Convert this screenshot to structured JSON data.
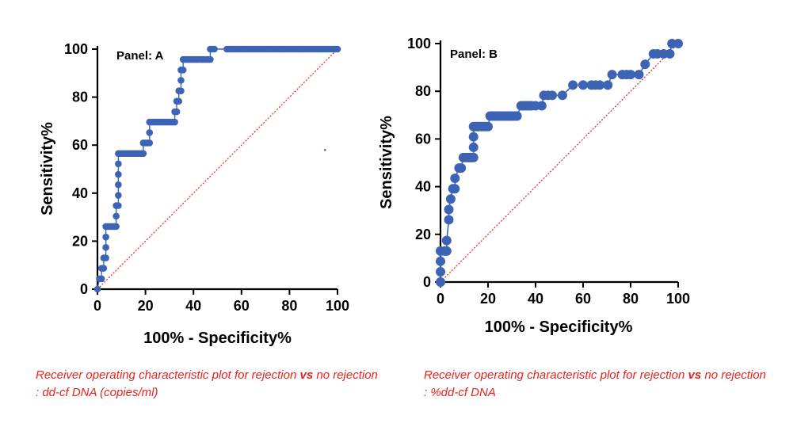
{
  "chart_data": [
    {
      "type": "line",
      "panel_label": "Panel: A",
      "xlabel": "100% - Specificity%",
      "ylabel": "Sensitivity%",
      "xlim": [
        0,
        100
      ],
      "ylim": [
        0,
        100
      ],
      "xticks": [
        "0",
        "20",
        "40",
        "60",
        "80",
        "100"
      ],
      "yticks": [
        "0",
        "20",
        "40",
        "60",
        "80",
        "100"
      ],
      "grid": false,
      "series_color": "#3d63b5",
      "reference_color": "#e8231d",
      "reference_line": [
        [
          0,
          0
        ],
        [
          100,
          100
        ]
      ],
      "stray_point": [
        94.8,
        58
      ],
      "points": [
        [
          0,
          0
        ],
        [
          0.8,
          4.3
        ],
        [
          1.7,
          4.3
        ],
        [
          1.7,
          8.7
        ],
        [
          2.6,
          8.7
        ],
        [
          2.6,
          13
        ],
        [
          3.5,
          13
        ],
        [
          3.5,
          17.4
        ],
        [
          3.5,
          21.7
        ],
        [
          3.5,
          26.1
        ],
        [
          4.3,
          26.1
        ],
        [
          5.2,
          26.1
        ],
        [
          6.1,
          26.1
        ],
        [
          7,
          26.1
        ],
        [
          7.8,
          26.1
        ],
        [
          7.8,
          30.4
        ],
        [
          7.8,
          34.8
        ],
        [
          8.7,
          34.8
        ],
        [
          8.7,
          39.1
        ],
        [
          8.7,
          43.5
        ],
        [
          8.7,
          47.8
        ],
        [
          8.7,
          52.2
        ],
        [
          8.7,
          56.5
        ],
        [
          9.6,
          56.5
        ],
        [
          10.4,
          56.5
        ],
        [
          11.3,
          56.5
        ],
        [
          12.2,
          56.5
        ],
        [
          13,
          56.5
        ],
        [
          13.9,
          56.5
        ],
        [
          14.8,
          56.5
        ],
        [
          15.7,
          56.5
        ],
        [
          16.5,
          56.5
        ],
        [
          17.4,
          56.5
        ],
        [
          18.3,
          56.5
        ],
        [
          19.1,
          56.5
        ],
        [
          19.1,
          60.9
        ],
        [
          20,
          60.9
        ],
        [
          20.9,
          60.9
        ],
        [
          21.7,
          60.9
        ],
        [
          21.7,
          65.2
        ],
        [
          21.7,
          69.6
        ],
        [
          22.6,
          69.6
        ],
        [
          23.5,
          69.6
        ],
        [
          24.3,
          69.6
        ],
        [
          25.2,
          69.6
        ],
        [
          26.1,
          69.6
        ],
        [
          27,
          69.6
        ],
        [
          27.8,
          69.6
        ],
        [
          28.7,
          69.6
        ],
        [
          29.6,
          69.6
        ],
        [
          30.4,
          69.6
        ],
        [
          31.3,
          69.6
        ],
        [
          32.2,
          69.6
        ],
        [
          32.2,
          73.9
        ],
        [
          33,
          73.9
        ],
        [
          33,
          78.3
        ],
        [
          33.9,
          78.3
        ],
        [
          33.9,
          82.6
        ],
        [
          34.8,
          82.6
        ],
        [
          34.8,
          87
        ],
        [
          34.8,
          91.3
        ],
        [
          35.7,
          91.3
        ],
        [
          35.7,
          95.7
        ],
        [
          36.5,
          95.7
        ],
        [
          37.4,
          95.7
        ],
        [
          38.3,
          95.7
        ],
        [
          39.1,
          95.7
        ],
        [
          40,
          95.7
        ],
        [
          40.9,
          95.7
        ],
        [
          41.7,
          95.7
        ],
        [
          42.6,
          95.7
        ],
        [
          43.5,
          95.7
        ],
        [
          44.3,
          95.7
        ],
        [
          45.2,
          95.7
        ],
        [
          46.1,
          95.7
        ],
        [
          47,
          95.7
        ],
        [
          47,
          100
        ],
        [
          47.8,
          100
        ],
        [
          48.7,
          100
        ],
        [
          53.9,
          100
        ],
        [
          54.8,
          100
        ],
        [
          55.7,
          100
        ],
        [
          56.5,
          100
        ],
        [
          57.4,
          100
        ],
        [
          58.3,
          100
        ],
        [
          59.1,
          100
        ],
        [
          60,
          100
        ],
        [
          60.9,
          100
        ],
        [
          61.7,
          100
        ],
        [
          62.6,
          100
        ],
        [
          63.5,
          100
        ],
        [
          64.3,
          100
        ],
        [
          65.2,
          100
        ],
        [
          66.1,
          100
        ],
        [
          67,
          100
        ],
        [
          67.8,
          100
        ],
        [
          68.7,
          100
        ],
        [
          69.6,
          100
        ],
        [
          70.4,
          100
        ],
        [
          71.3,
          100
        ],
        [
          72.2,
          100
        ],
        [
          73,
          100
        ],
        [
          73.9,
          100
        ],
        [
          74.8,
          100
        ],
        [
          75.7,
          100
        ],
        [
          76.5,
          100
        ],
        [
          77.4,
          100
        ],
        [
          78.3,
          100
        ],
        [
          79.1,
          100
        ],
        [
          80,
          100
        ],
        [
          80.9,
          100
        ],
        [
          81.7,
          100
        ],
        [
          82.6,
          100
        ],
        [
          83.5,
          100
        ],
        [
          84.3,
          100
        ],
        [
          85.2,
          100
        ],
        [
          86.1,
          100
        ],
        [
          87,
          100
        ],
        [
          87.8,
          100
        ],
        [
          88.7,
          100
        ],
        [
          89.6,
          100
        ],
        [
          90.4,
          100
        ],
        [
          91.3,
          100
        ],
        [
          92.2,
          100
        ],
        [
          93,
          100
        ],
        [
          93.9,
          100
        ],
        [
          94.8,
          100
        ],
        [
          95.7,
          100
        ],
        [
          96.5,
          100
        ],
        [
          97.4,
          100
        ],
        [
          98.3,
          100
        ],
        [
          99.1,
          100
        ],
        [
          100,
          100
        ]
      ]
    },
    {
      "type": "line",
      "panel_label": "Panel: B",
      "xlabel": "100% - Specificity%",
      "ylabel": "Sensitivity%",
      "xlim": [
        0,
        100
      ],
      "ylim": [
        0,
        100
      ],
      "xticks": [
        "0",
        "20",
        "40",
        "60",
        "80",
        "100"
      ],
      "yticks": [
        "0",
        "20",
        "40",
        "60",
        "80",
        "100"
      ],
      "grid": false,
      "series_color": "#3d63b5",
      "reference_color": "#e8231d",
      "reference_line": [
        [
          0,
          0
        ],
        [
          100,
          100
        ]
      ],
      "points": [
        [
          0,
          0
        ],
        [
          0,
          4.3
        ],
        [
          0,
          8.7
        ],
        [
          0,
          13
        ],
        [
          1.7,
          13
        ],
        [
          2.6,
          13
        ],
        [
          2.6,
          17.4
        ],
        [
          3.5,
          26.1
        ],
        [
          3.5,
          30.4
        ],
        [
          4.3,
          34.8
        ],
        [
          5.2,
          39.1
        ],
        [
          6.1,
          39.1
        ],
        [
          6.1,
          43.5
        ],
        [
          7.8,
          47.8
        ],
        [
          8.7,
          47.8
        ],
        [
          9.6,
          52.2
        ],
        [
          10.4,
          52.2
        ],
        [
          11.3,
          52.2
        ],
        [
          12.2,
          52.2
        ],
        [
          13,
          52.2
        ],
        [
          13.9,
          52.2
        ],
        [
          13.9,
          56.5
        ],
        [
          13.9,
          60.9
        ],
        [
          13.9,
          65.2
        ],
        [
          14.8,
          65.2
        ],
        [
          15.7,
          65.2
        ],
        [
          16.5,
          65.2
        ],
        [
          17.4,
          65.2
        ],
        [
          18.3,
          65.2
        ],
        [
          19.1,
          65.2
        ],
        [
          20,
          65.2
        ],
        [
          20.9,
          69.6
        ],
        [
          21.7,
          69.6
        ],
        [
          22.6,
          69.6
        ],
        [
          23.5,
          69.6
        ],
        [
          24.3,
          69.6
        ],
        [
          25.2,
          69.6
        ],
        [
          26.1,
          69.6
        ],
        [
          27,
          69.6
        ],
        [
          27.8,
          69.6
        ],
        [
          28.7,
          69.6
        ],
        [
          29.6,
          69.6
        ],
        [
          30.4,
          69.6
        ],
        [
          31.3,
          69.6
        ],
        [
          32.2,
          69.6
        ],
        [
          33.9,
          73.9
        ],
        [
          34.8,
          73.9
        ],
        [
          35.7,
          73.9
        ],
        [
          36.5,
          73.9
        ],
        [
          37.4,
          73.9
        ],
        [
          38.3,
          73.9
        ],
        [
          40,
          73.9
        ],
        [
          42.6,
          73.9
        ],
        [
          43.5,
          78.3
        ],
        [
          45.2,
          78.3
        ],
        [
          47,
          78.3
        ],
        [
          51.3,
          78.3
        ],
        [
          55.7,
          82.6
        ],
        [
          60,
          82.6
        ],
        [
          63.5,
          82.6
        ],
        [
          65.2,
          82.6
        ],
        [
          67,
          82.6
        ],
        [
          70.4,
          82.6
        ],
        [
          72.2,
          87
        ],
        [
          76.5,
          87
        ],
        [
          78.3,
          87
        ],
        [
          80,
          87
        ],
        [
          83.5,
          87
        ],
        [
          86.1,
          91.3
        ],
        [
          89.6,
          95.7
        ],
        [
          91.3,
          95.7
        ],
        [
          93.9,
          95.7
        ],
        [
          96.5,
          95.7
        ],
        [
          97.4,
          100
        ],
        [
          100,
          100
        ]
      ]
    }
  ],
  "captions": [
    {
      "before": "Receiver operating characteristic plot for rejection ",
      "bold": "vs",
      "after": " no rejection : dd-cf DNA (copies/ml)"
    },
    {
      "before": "Receiver operating characteristic plot for rejection ",
      "bold": "vs",
      "after": " no rejection : %dd-cf DNA"
    }
  ]
}
